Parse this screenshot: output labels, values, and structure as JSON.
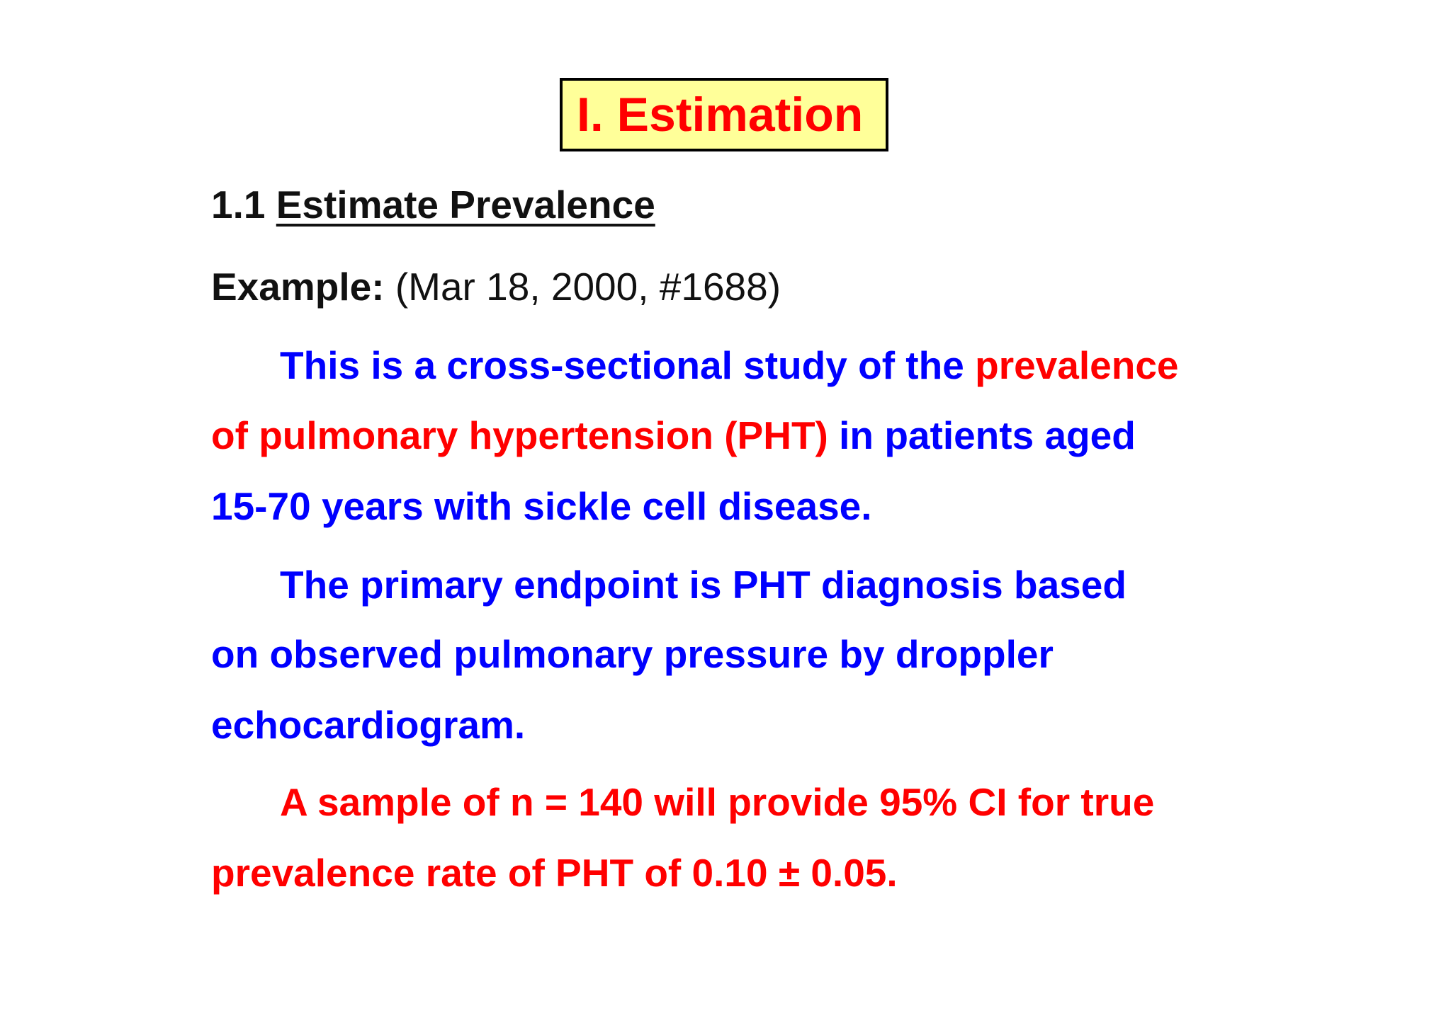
{
  "title": "I. Estimation",
  "section": {
    "number": "1.1",
    "heading": "Estimate Prevalence"
  },
  "example": {
    "label": "Example:",
    "reference": "(Mar 18, 2000, #1688)"
  },
  "paragraph1": {
    "line1_blue": "This is a cross-sectional study of the",
    "line1_red": "prevalence",
    "line2_red": "of pulmonary hypertension (PHT)",
    "line2_blue": "in patients aged",
    "line3_blue": "15-70 years with sickle cell disease."
  },
  "paragraph2": {
    "line1": "The primary endpoint is PHT diagnosis based",
    "line2": "on observed pulmonary pressure by droppler",
    "line3": "echocardiogram."
  },
  "paragraph3": {
    "line1": "A sample of n = 140 will provide 95% CI for true",
    "line2": "prevalence rate of PHT of 0.10 ± 0.05."
  },
  "colors": {
    "title_text": "#ff0000",
    "title_box_background": "#ffff99",
    "body_blue": "#0000ff",
    "body_red": "#ff0000",
    "body_black": "#111111"
  }
}
